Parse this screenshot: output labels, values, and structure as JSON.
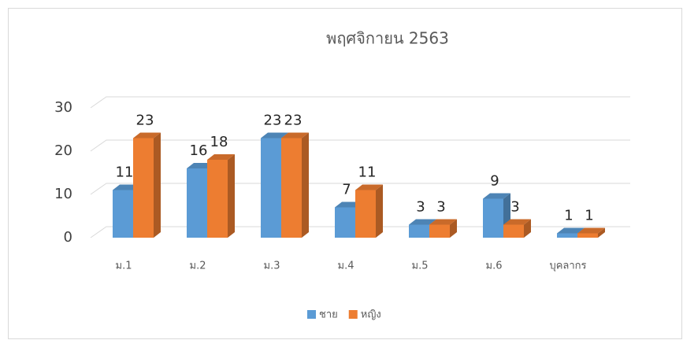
{
  "chart_data": {
    "type": "bar",
    "title": "พฤศจิกายน 2563",
    "categories": [
      "ม.1",
      "ม.2",
      "ม.3",
      "ม.4",
      "ม.5",
      "ม.6",
      "บุคลากร"
    ],
    "series": [
      {
        "name": "ชาย",
        "color": "#5b9bd5",
        "values": [
          11,
          16,
          23,
          7,
          3,
          9,
          1
        ]
      },
      {
        "name": "หญิง",
        "color": "#ed7d31",
        "values": [
          23,
          18,
          23,
          11,
          3,
          3,
          1
        ]
      }
    ],
    "ylim": [
      0,
      30
    ],
    "yticks": [
      0,
      10,
      20,
      30
    ],
    "grid": true,
    "legend": "bottom"
  }
}
